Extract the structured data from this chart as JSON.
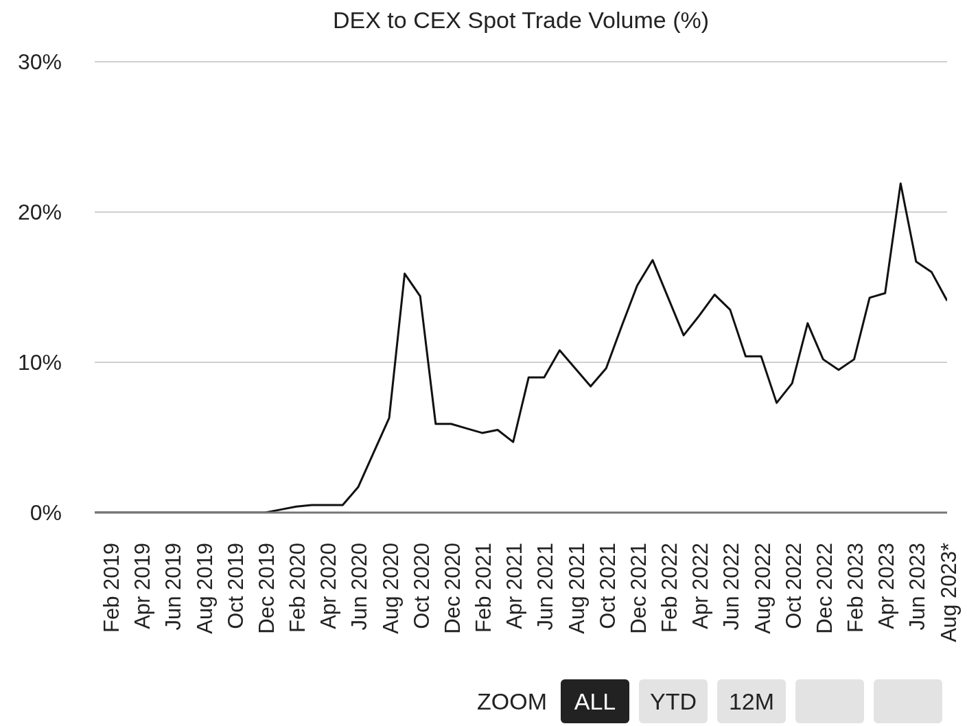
{
  "chart_data": {
    "type": "line",
    "title": "DEX to CEX Spot Trade Volume (%)",
    "categories": [
      null,
      "Feb 2019",
      null,
      "Apr 2019",
      null,
      "Jun 2019",
      null,
      "Aug 2019",
      null,
      "Oct 2019",
      null,
      "Dec 2019",
      null,
      "Feb 2020",
      null,
      "Apr 2020",
      null,
      "Jun 2020",
      null,
      "Aug 2020",
      null,
      "Oct 2020",
      null,
      "Dec 2020",
      null,
      "Feb 2021",
      null,
      "Apr 2021",
      null,
      "Jun 2021",
      null,
      "Aug 2021",
      null,
      "Oct 2021",
      null,
      "Dec 2021",
      null,
      "Feb 2022",
      null,
      "Apr 2022",
      null,
      "Jun 2022",
      null,
      "Aug 2022",
      null,
      "Oct 2022",
      null,
      "Dec 2022",
      null,
      "Feb 2023",
      null,
      "Apr 2023",
      null,
      "Jun 2023",
      null,
      "Aug 2023*"
    ],
    "series": [
      {
        "color": "#111111",
        "values": [
          0,
          0,
          0,
          0,
          0,
          0,
          0,
          0,
          0,
          0,
          0,
          0,
          0.2,
          0.4,
          0.5,
          0.5,
          0.5,
          1.7,
          4.0,
          6.3,
          15.9,
          14.4,
          5.9,
          5.9,
          5.6,
          5.3,
          5.5,
          4.7,
          9.0,
          9.0,
          10.8,
          9.6,
          8.4,
          9.6,
          12.4,
          15.1,
          16.8,
          14.3,
          11.8,
          13.1,
          14.5,
          13.5,
          10.4,
          10.4,
          7.3,
          8.6,
          12.6,
          10.2,
          9.5,
          10.2,
          14.3,
          14.6,
          21.9,
          16.7,
          16.0,
          14.1
        ]
      }
    ],
    "ylim": [
      0,
      30
    ],
    "yticks": [
      {
        "value": 0,
        "label": "0%"
      },
      {
        "value": 10,
        "label": "10%"
      },
      {
        "value": 20,
        "label": "20%"
      },
      {
        "value": 30,
        "label": "30%"
      }
    ],
    "grid": "y",
    "legend": false,
    "marker": "none",
    "line_style": "solid",
    "annotations": [
      "ZOOM",
      "ALL",
      "YTD",
      "12M"
    ]
  }
}
